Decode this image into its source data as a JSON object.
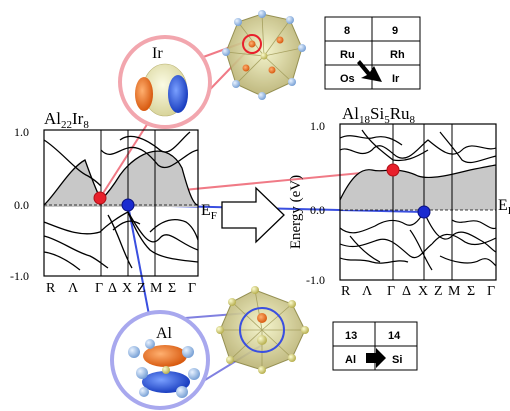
{
  "left_panel": {
    "formula": [
      "Al",
      "22",
      "Ir",
      "8"
    ],
    "y_ticks": [
      "1.0",
      "0.0",
      "-1.0"
    ],
    "x_ticks": [
      "R",
      "Λ",
      "Γ",
      "Δ",
      "X",
      "Z",
      "M",
      "Σ",
      "Γ"
    ]
  },
  "right_panel": {
    "formula": [
      "Al",
      "18",
      "Si",
      "5",
      "Ru",
      "8"
    ],
    "y_label": "Energy (eV)",
    "y_ticks": [
      "1.0",
      "0.0",
      "-1.0"
    ],
    "x_ticks": [
      "R",
      "Λ",
      "Γ",
      "Δ",
      "X",
      "Z",
      "M",
      "Σ",
      "Γ"
    ]
  },
  "fermi_label": "E_F",
  "orbital_labels": {
    "top": "Ir",
    "bottom": "Al"
  },
  "top_table": {
    "headers": [
      "8",
      "9"
    ],
    "rows": [
      [
        "Ru",
        "Rh"
      ],
      [
        "Os",
        "Ir"
      ]
    ]
  },
  "bottom_table": {
    "headers": [
      "13",
      "14"
    ],
    "cells": [
      "Al",
      "Si"
    ]
  },
  "colors": {
    "red_link": "#f07a86",
    "red_marker": "#e8202c",
    "blue_link": "#3a4fe0",
    "blue_marker": "#1a2bd0",
    "band_fill": "#c8c8c8",
    "circle_red": "#f2a6ae",
    "circle_blue": "#a8a8ee"
  }
}
